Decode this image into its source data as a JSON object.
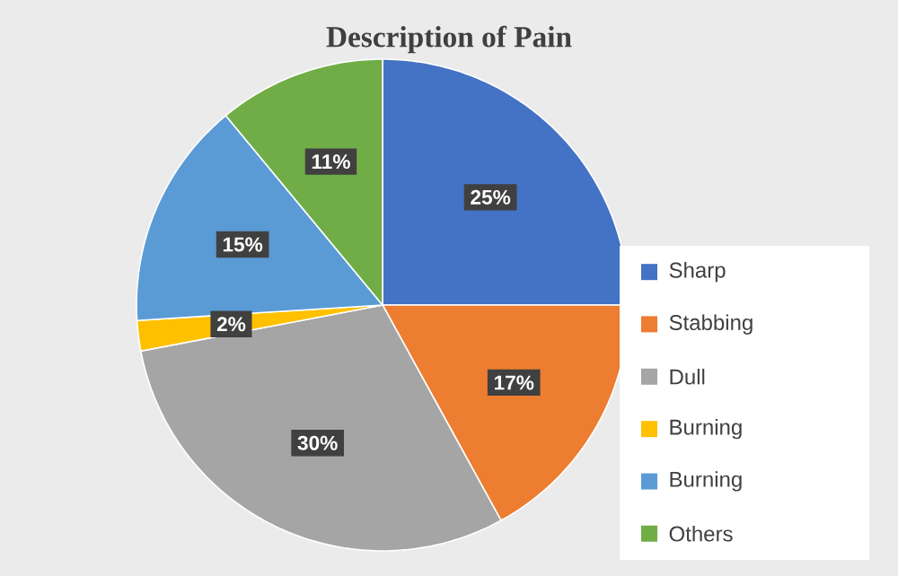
{
  "chart_data": {
    "type": "pie",
    "title": "Description of Pain",
    "categories": [
      "Sharp",
      "Stabbing",
      "Dull",
      "Burning",
      "Burning",
      "Others"
    ],
    "values": [
      25,
      17,
      30,
      2,
      15,
      11
    ],
    "value_labels": [
      "25%",
      "17%",
      "30%",
      "2%",
      "15%",
      "11%"
    ],
    "colors": [
      "#4472c4",
      "#ed7d31",
      "#a5a5a5",
      "#ffc000",
      "#5b9bd5",
      "#70ad47"
    ],
    "legend": "right"
  }
}
